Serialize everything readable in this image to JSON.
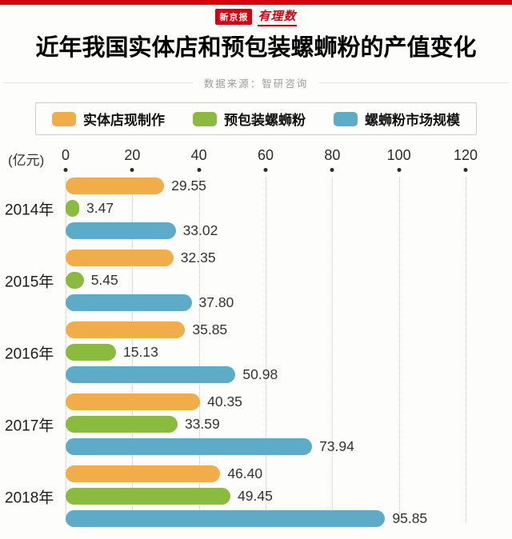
{
  "header": {
    "logo_badge": "新京报",
    "logo_script": "有理数",
    "title": "近年我国实体店和预包装螺蛳粉的产值变化",
    "source": "数据来源：智研咨询"
  },
  "colors": {
    "accent_red": "#D7000E",
    "orange": "#F0AD4A",
    "green": "#8ABA3E",
    "blue": "#5DABC7"
  },
  "chart_data": {
    "type": "bar",
    "orientation": "horizontal",
    "title": "近年我国实体店和预包装螺蛳粉的产值变化",
    "unit_label": "(亿元)",
    "source": "数据来源：智研咨询",
    "categories": [
      "2014年",
      "2015年",
      "2016年",
      "2017年",
      "2018年"
    ],
    "series": [
      {
        "name": "实体店现制作",
        "color": "#F0AD4A",
        "values": [
          29.55,
          32.35,
          35.85,
          40.35,
          46.4
        ]
      },
      {
        "name": "预包装螺蛳粉",
        "color": "#8ABA3E",
        "values": [
          3.47,
          5.45,
          15.13,
          33.59,
          49.45
        ]
      },
      {
        "name": "螺蛳粉市场规模",
        "color": "#5DABC7",
        "values": [
          33.02,
          37.8,
          50.98,
          73.94,
          95.85
        ]
      }
    ],
    "xlim": [
      0,
      120
    ],
    "xticks": [
      0,
      20,
      40,
      60,
      80,
      100,
      120
    ],
    "grid": "vertical-dotted",
    "legend_position": "top",
    "value_labels": "right-of-bar, 2 decimals"
  }
}
